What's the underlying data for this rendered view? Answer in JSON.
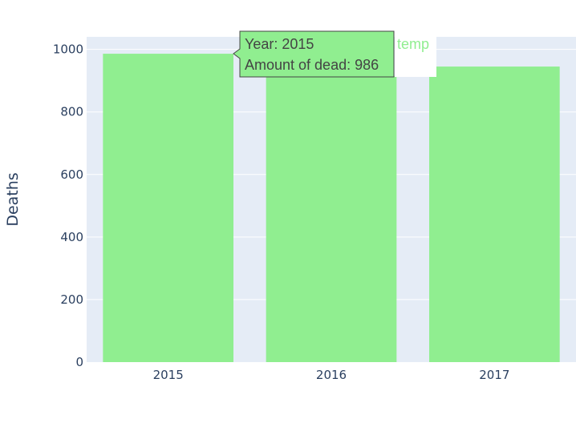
{
  "chart_data": {
    "type": "bar",
    "categories": [
      "2015",
      "2016",
      "2017"
    ],
    "values": [
      986,
      915,
      945
    ],
    "xlabel": "",
    "ylabel": "Deaths",
    "ylim": [
      0,
      1040
    ],
    "yticks": [
      0,
      200,
      400,
      600,
      800,
      1000
    ],
    "grid": true,
    "series": [
      {
        "name": "temp",
        "values": [
          986,
          915,
          945
        ]
      }
    ],
    "bar_color": "#90ee90",
    "plot_bgcolor": "#e5ecf6",
    "gridcolor": "#ffffff",
    "text_color": "#2a3f5f"
  },
  "hover": {
    "line1": "Year: 2015",
    "line2": "Amount of dead: 986",
    "bgcolor": "#90ee90",
    "bordercolor": "#444444"
  },
  "legend": {
    "label": "temp",
    "color": "#90ee90"
  }
}
